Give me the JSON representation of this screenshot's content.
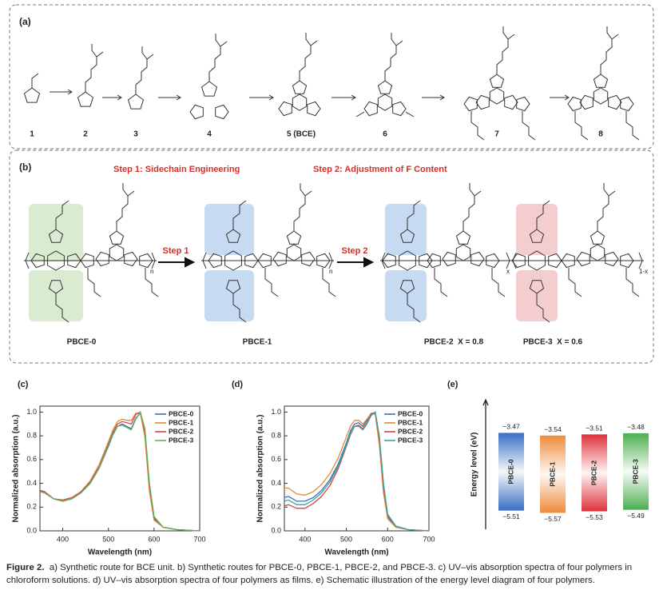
{
  "panel_a": {
    "label": "(a)",
    "compounds": [
      "1",
      "2",
      "3",
      "4",
      "5 (BCE)",
      "6",
      "7",
      "8"
    ]
  },
  "panel_b": {
    "label": "(b)",
    "step1_title": "Step 1: Sidechain Engineering",
    "step2_title": "Step 2: Adjustment of F Content",
    "step1": "Step 1",
    "step2": "Step 2",
    "polymers": [
      "PBCE-0",
      "PBCE-1",
      "PBCE-2  X = 0.8",
      "PBCE-3  X = 0.6"
    ],
    "repeat": [
      "n",
      "n",
      "x",
      "1-x"
    ]
  },
  "chart_data": [
    {
      "type": "line",
      "panel": "(c)",
      "xlabel": "Wavelength (nm)",
      "ylabel": "Normalized absorption (a.u.)",
      "x": [
        350,
        360,
        380,
        400,
        420,
        440,
        460,
        480,
        500,
        510,
        520,
        530,
        540,
        550,
        560,
        570,
        580,
        590,
        600,
        620,
        650,
        700
      ],
      "series": [
        {
          "name": "PBCE-0",
          "color": "#3a6fb5",
          "values": [
            0.34,
            0.33,
            0.27,
            0.25,
            0.27,
            0.32,
            0.4,
            0.53,
            0.71,
            0.81,
            0.88,
            0.9,
            0.88,
            0.86,
            0.95,
            0.99,
            0.82,
            0.36,
            0.1,
            0.03,
            0.01,
            0.0
          ]
        },
        {
          "name": "PBCE-1",
          "color": "#e08a3c",
          "values": [
            0.33,
            0.32,
            0.27,
            0.25,
            0.27,
            0.33,
            0.42,
            0.56,
            0.75,
            0.85,
            0.92,
            0.94,
            0.93,
            0.93,
            0.99,
            0.99,
            0.79,
            0.33,
            0.09,
            0.03,
            0.01,
            0.0
          ]
        },
        {
          "name": "PBCE-2",
          "color": "#d9434a",
          "values": [
            0.34,
            0.33,
            0.27,
            0.26,
            0.28,
            0.33,
            0.41,
            0.54,
            0.73,
            0.83,
            0.9,
            0.92,
            0.91,
            0.9,
            0.98,
            1.0,
            0.84,
            0.38,
            0.11,
            0.03,
            0.01,
            0.0
          ]
        },
        {
          "name": "PBCE-3",
          "color": "#5bb55b",
          "values": [
            0.33,
            0.32,
            0.27,
            0.25,
            0.27,
            0.32,
            0.4,
            0.53,
            0.72,
            0.82,
            0.88,
            0.89,
            0.87,
            0.85,
            0.94,
            1.0,
            0.86,
            0.4,
            0.12,
            0.03,
            0.01,
            0.0
          ]
        }
      ],
      "xlim": [
        350,
        700
      ],
      "xticks": [
        400,
        500,
        600,
        700
      ],
      "ylim": [
        0,
        1.05
      ],
      "yticks": [
        {
          "value": 0,
          "label": "0.0"
        },
        {
          "value": 0.2,
          "label": "0.2"
        },
        {
          "value": 0.4,
          "label": "0.4"
        },
        {
          "value": 0.6,
          "label": "0.6"
        },
        {
          "value": 0.8,
          "label": "0.8"
        },
        {
          "value": 1,
          "label": "1.0"
        }
      ],
      "legend": "upper right"
    },
    {
      "type": "line",
      "panel": "(d)",
      "xlabel": "Wavelength (nm)",
      "ylabel": "Normalized absorption (a.u.)",
      "x": [
        350,
        360,
        380,
        400,
        420,
        440,
        460,
        480,
        500,
        510,
        520,
        530,
        540,
        550,
        560,
        570,
        580,
        590,
        600,
        620,
        650,
        700
      ],
      "series": [
        {
          "name": "PBCE-0",
          "color": "#3a6fb5",
          "values": [
            0.28,
            0.29,
            0.25,
            0.25,
            0.28,
            0.34,
            0.43,
            0.56,
            0.74,
            0.84,
            0.9,
            0.91,
            0.88,
            0.93,
            0.99,
            0.99,
            0.75,
            0.35,
            0.12,
            0.03,
            0.01,
            0.0
          ]
        },
        {
          "name": "PBCE-1",
          "color": "#e08a3c",
          "values": [
            0.36,
            0.36,
            0.31,
            0.3,
            0.33,
            0.39,
            0.48,
            0.61,
            0.79,
            0.88,
            0.93,
            0.93,
            0.9,
            0.94,
            0.99,
            0.98,
            0.72,
            0.32,
            0.1,
            0.03,
            0.01,
            0.0
          ]
        },
        {
          "name": "PBCE-2",
          "color": "#d9434a",
          "values": [
            0.21,
            0.22,
            0.19,
            0.19,
            0.23,
            0.29,
            0.38,
            0.52,
            0.71,
            0.81,
            0.88,
            0.89,
            0.86,
            0.91,
            0.98,
            1.0,
            0.78,
            0.37,
            0.13,
            0.04,
            0.01,
            0.0
          ]
        },
        {
          "name": "PBCE-3",
          "color": "#3aa6a0",
          "values": [
            0.25,
            0.26,
            0.22,
            0.22,
            0.26,
            0.32,
            0.41,
            0.54,
            0.72,
            0.82,
            0.88,
            0.88,
            0.85,
            0.9,
            0.97,
            1.0,
            0.8,
            0.4,
            0.14,
            0.04,
            0.01,
            0.0
          ]
        }
      ],
      "xlim": [
        350,
        700
      ],
      "xticks": [
        400,
        500,
        600,
        700
      ],
      "ylim": [
        0,
        1.05
      ],
      "yticks": [
        {
          "value": 0,
          "label": "0.0"
        },
        {
          "value": 0.2,
          "label": "0.2"
        },
        {
          "value": 0.4,
          "label": "0.4"
        },
        {
          "value": 0.6,
          "label": "0.6"
        },
        {
          "value": 0.8,
          "label": "0.8"
        },
        {
          "value": 1,
          "label": "1.0"
        }
      ],
      "legend": "upper right"
    },
    {
      "type": "energy_level",
      "panel": "(e)",
      "ylabel": "Energy level (eV)",
      "categories": [
        "PBCE-0",
        "PBCE-1",
        "PBCE-2",
        "PBCE-3"
      ],
      "colors": [
        "#3a6fc4",
        "#ee8a3a",
        "#e0323c",
        "#4caf50"
      ],
      "values": [
        [
          -3.47,
          -5.51
        ],
        [
          -3.54,
          -5.57
        ],
        [
          -3.51,
          -5.53
        ],
        [
          -3.48,
          -5.49
        ]
      ],
      "value_labels": [
        [
          "−3.47",
          "−5.51"
        ],
        [
          "−3.54",
          "−5.57"
        ],
        [
          "−3.51",
          "−5.53"
        ],
        [
          "−3.48",
          "−5.49"
        ]
      ],
      "ylim": [
        -6.0,
        -2.6
      ]
    }
  ],
  "caption": {
    "label": "Figure 2.",
    "text": "a) Synthetic route for BCE unit. b) Synthetic routes for PBCE-0, PBCE-1, PBCE-2, and PBCE-3. c) UV–vis absorption spectra of four polymers in chloroform solutions. d) UV–vis absorption spectra of four polymers as films. e) Schematic illustration of the energy level diagram of four polymers."
  }
}
